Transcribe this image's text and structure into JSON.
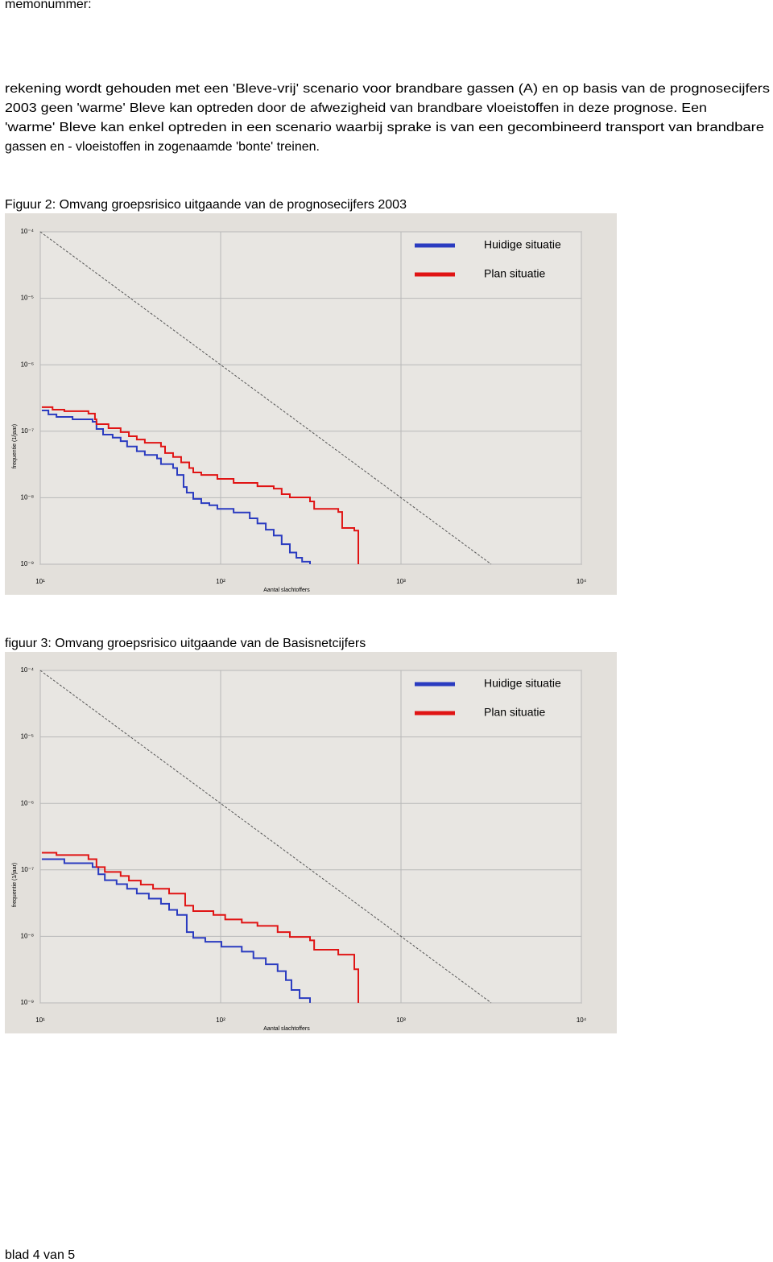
{
  "header": "memonummer:",
  "paragraph": [
    "rekening wordt gehouden met een 'Bleve-vrij' scenario voor brandbare gassen (A) en op basis van de prognosecijfers",
    "2003 geen 'warme' Bleve kan optreden door de afwezigheid van brandbare vloeistoffen in deze prognose. Een",
    "'warme' Bleve kan enkel optreden in een scenario waarbij sprake is van een gecombineerd transport van brandbare",
    "gassen en - vloeistoffen in zogenaamde  'bonte' treinen."
  ],
  "footer": "blad 4 van 5",
  "chart_data": [
    {
      "type": "line",
      "title": "Figuur 2: Omvang groepsrisico uitgaande van de prognosecijfers 2003",
      "xlabel": "Aantal slachtoffers",
      "ylabel": "frequentie (1/jaar)",
      "xscale": "log",
      "yscale": "log",
      "grid": true,
      "legend": "upper right",
      "drawstyle": "steps-post",
      "xlim": [
        10,
        10000
      ],
      "ylim": [
        1e-09,
        0.0001
      ],
      "xticks": [
        {
          "value": 10,
          "label": "10¹"
        },
        {
          "value": 100,
          "label": "10²"
        },
        {
          "value": 1000,
          "label": "10³"
        },
        {
          "value": 10000,
          "label": "10⁴"
        }
      ],
      "yticks": [
        {
          "value": 0.0001,
          "label": "10⁻⁴"
        },
        {
          "value": 1e-05,
          "label": "10⁻⁵"
        },
        {
          "value": 1e-06,
          "label": "10⁻⁶"
        },
        {
          "value": 1e-07,
          "label": "10⁻⁷"
        },
        {
          "value": 1e-08,
          "label": "10⁻⁸"
        },
        {
          "value": 1e-09,
          "label": "10⁻⁹"
        }
      ],
      "series": [
        {
          "name": "Huidige situatie",
          "color": "#2a3bc0",
          "x": [
            10.2,
            11.1,
            12.3,
            15.1,
            19.5,
            20.5,
            22.3,
            25.2,
            27.9,
            30.3,
            34.3,
            38.0,
            44.4,
            46.7,
            54.5,
            57.4,
            62.3,
            64.9,
            70.5,
            78.1,
            86.6,
            95.9,
            118,
            145,
            160,
            178,
            197,
            218,
            242,
            263,
            283,
            313
          ],
          "values": [
            2.05e-07,
            1.79e-07,
            1.64e-07,
            1.51e-07,
            1.39e-07,
            1.08e-07,
            8.9e-08,
            8e-08,
            7.1e-08,
            5.9e-08,
            5e-08,
            4.4e-08,
            3.9e-08,
            3.2e-08,
            2.8e-08,
            2.2e-08,
            1.45e-08,
            1.19e-08,
            9.6e-09,
            8.3e-09,
            7.7e-09,
            6.8e-09,
            6e-09,
            4.9e-09,
            4.1e-09,
            3.3e-09,
            2.7e-09,
            2e-09,
            1.5e-09,
            1.25e-09,
            1.09e-09,
            1e-09
          ]
        },
        {
          "name": "Plan situatie",
          "color": "#e01414",
          "x": [
            10.2,
            11.7,
            13.6,
            18.5,
            20.1,
            20.5,
            23.9,
            27.9,
            31.0,
            34.3,
            38.0,
            46.7,
            49.2,
            54.5,
            60.4,
            67.0,
            70.5,
            78.1,
            95.9,
            118,
            160,
            197,
            218,
            242,
            313,
            330,
            449,
            472,
            551,
            580
          ],
          "values": [
            2.3e-07,
            2.11e-07,
            2e-07,
            1.84e-07,
            1.51e-07,
            1.28e-07,
            1.11e-07,
            9.7e-08,
            8.4e-08,
            7.5e-08,
            6.7e-08,
            5.9e-08,
            4.7e-08,
            4.1e-08,
            3.4e-08,
            2.8e-08,
            2.4e-08,
            2.2e-08,
            1.92e-08,
            1.67e-08,
            1.49e-08,
            1.37e-08,
            1.13e-08,
            1.01e-08,
            8.8e-09,
            6.8e-09,
            6.1e-09,
            3.5e-09,
            3.2e-09,
            1e-09
          ]
        },
        {
          "color": "#555555",
          "linestyle": "dashed",
          "x": [
            10,
            3162
          ],
          "values": [
            0.0001,
            1e-09
          ]
        }
      ]
    },
    {
      "type": "line",
      "title": "figuur 3: Omvang groepsrisico uitgaande van de Basisnetcijfers",
      "xlabel": "Aantal slachtoffers",
      "ylabel": "frequentie (1/jaar)",
      "xscale": "log",
      "yscale": "log",
      "grid": true,
      "legend": "upper right",
      "drawstyle": "steps-post",
      "xlim": [
        10,
        10000
      ],
      "ylim": [
        1e-09,
        0.0001
      ],
      "xticks": [
        {
          "value": 10,
          "label": "10¹"
        },
        {
          "value": 100,
          "label": "10²"
        },
        {
          "value": 1000,
          "label": "10³"
        },
        {
          "value": 10000,
          "label": "10⁴"
        }
      ],
      "yticks": [
        {
          "value": 0.0001,
          "label": "10⁻⁴"
        },
        {
          "value": 1e-05,
          "label": "10⁻⁵"
        },
        {
          "value": 1e-06,
          "label": "10⁻⁶"
        },
        {
          "value": 1e-07,
          "label": "10⁻⁷"
        },
        {
          "value": 1e-08,
          "label": "10⁻⁸"
        },
        {
          "value": 1e-09,
          "label": "10⁻⁹"
        }
      ],
      "series": [
        {
          "name": "Huidige situatie",
          "color": "#2a3bc0",
          "x": [
            10.2,
            13.6,
            19.5,
            21.0,
            22.8,
            26.5,
            30.3,
            34.3,
            40.0,
            46.7,
            51.8,
            57.4,
            64.9,
            70.5,
            82.2,
            101,
            131,
            152,
            178,
            207,
            230,
            247,
            274,
            313
          ],
          "values": [
            1.45e-07,
            1.26e-07,
            1.1e-07,
            8.6e-08,
            7e-08,
            6.1e-08,
            5.2e-08,
            4.4e-08,
            3.7e-08,
            3.1e-08,
            2.5e-08,
            2.1e-08,
            1.16e-08,
            9.5e-09,
            8.3e-09,
            7e-09,
            5.9e-09,
            4.7e-09,
            3.8e-09,
            3e-09,
            2.2e-09,
            1.56e-09,
            1.18e-09,
            1e-09
          ]
        },
        {
          "name": "Plan situatie",
          "color": "#e01414",
          "x": [
            10.2,
            12.3,
            18.5,
            20.5,
            22.8,
            27.9,
            31.0,
            36.1,
            42.2,
            51.8,
            63.6,
            70.5,
            91.2,
            106,
            131,
            160,
            207,
            242,
            313,
            330,
            449,
            551,
            580
          ],
          "values": [
            1.81e-07,
            1.67e-07,
            1.45e-07,
            1.1e-07,
            9.3e-08,
            8.1e-08,
            6.9e-08,
            6e-08,
            5.2e-08,
            4.4e-08,
            2.9e-08,
            2.4e-08,
            2.1e-08,
            1.8e-08,
            1.61e-08,
            1.44e-08,
            1.16e-08,
            9.8e-09,
            8.7e-09,
            6.3e-09,
            5.3e-09,
            3.2e-09,
            1e-09
          ]
        },
        {
          "color": "#555555",
          "linestyle": "dashed",
          "x": [
            10,
            3162
          ],
          "values": [
            0.0001,
            1e-09
          ]
        }
      ]
    }
  ]
}
